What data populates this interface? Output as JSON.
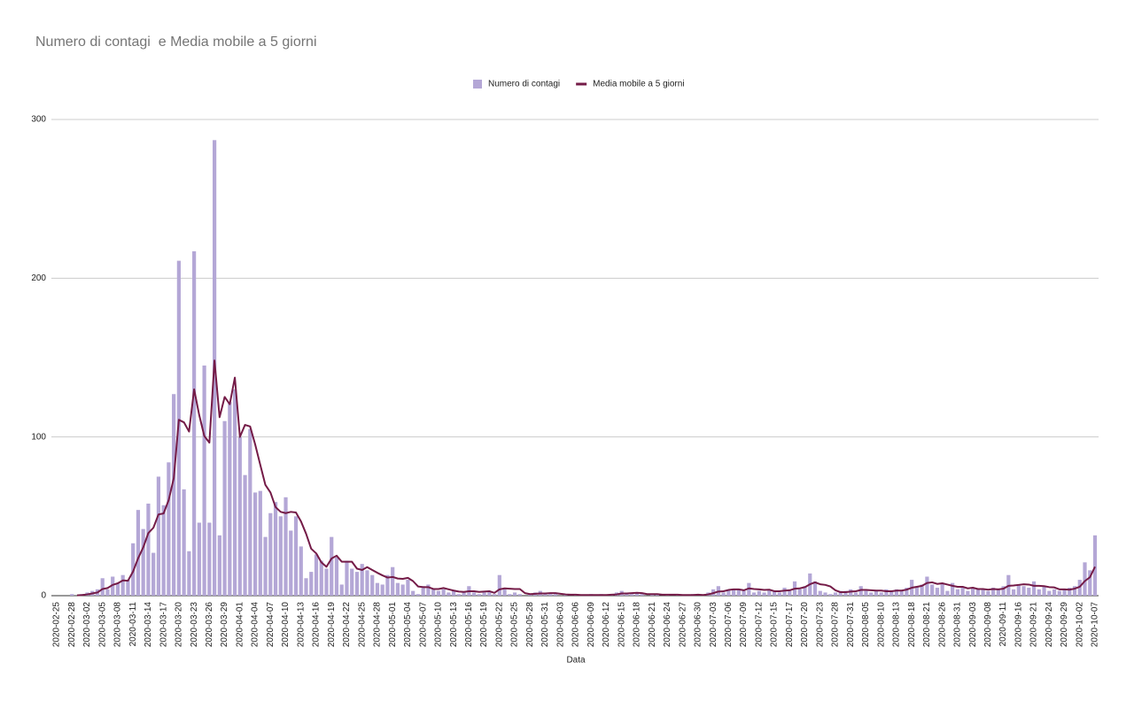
{
  "chart_data": {
    "type": "bar",
    "title": "Numero di contagi  e Media mobile a 5 giorni",
    "x_label": "Data",
    "ylim": [
      0,
      300
    ],
    "yticks": [
      0,
      100,
      200,
      300
    ],
    "grid": true,
    "legend": "top",
    "categories": [
      "2020-02-25",
      null,
      null,
      "2020-02-28",
      null,
      null,
      "2020-03-02",
      null,
      null,
      "2020-03-05",
      null,
      null,
      "2020-03-08",
      null,
      null,
      "2020-03-11",
      null,
      null,
      "2020-03-14",
      null,
      null,
      "2020-03-17",
      null,
      null,
      "2020-03-20",
      null,
      null,
      "2020-03-23",
      null,
      null,
      "2020-03-26",
      null,
      null,
      "2020-03-29",
      null,
      null,
      "2020-04-01",
      null,
      null,
      "2020-04-04",
      null,
      null,
      "2020-04-07",
      null,
      null,
      "2020-04-10",
      null,
      null,
      "2020-04-13",
      null,
      null,
      "2020-04-16",
      null,
      null,
      "2020-04-19",
      null,
      null,
      "2020-04-22",
      null,
      null,
      "2020-04-25",
      null,
      null,
      "2020-04-28",
      null,
      null,
      "2020-05-01",
      null,
      null,
      "2020-05-04",
      null,
      null,
      "2020-05-07",
      null,
      null,
      "2020-05-10",
      null,
      null,
      "2020-05-13",
      null,
      null,
      "2020-05-16",
      null,
      null,
      "2020-05-19",
      null,
      null,
      "2020-05-22",
      null,
      null,
      "2020-05-25",
      null,
      null,
      "2020-05-28",
      null,
      null,
      "2020-05-31",
      null,
      null,
      "2020-06-03",
      null,
      null,
      "2020-06-06",
      null,
      null,
      "2020-06-09",
      null,
      null,
      "2020-06-12",
      null,
      null,
      "2020-06-15",
      null,
      null,
      "2020-06-18",
      null,
      null,
      "2020-06-21",
      null,
      null,
      "2020-06-24",
      null,
      null,
      "2020-06-27",
      null,
      null,
      "2020-06-30",
      null,
      null,
      "2020-07-03",
      null,
      null,
      "2020-07-06",
      null,
      null,
      "2020-07-09",
      null,
      null,
      "2020-07-12",
      null,
      null,
      "2020-07-15",
      null,
      null,
      "2020-07-17",
      null,
      null,
      "2020-07-20",
      null,
      null,
      "2020-07-23",
      null,
      null,
      "2020-07-28",
      null,
      null,
      "2020-07-31",
      null,
      null,
      "2020-08-05",
      null,
      null,
      "2020-08-10",
      null,
      null,
      "2020-08-13",
      null,
      null,
      "2020-08-18",
      null,
      null,
      "2020-08-21",
      null,
      null,
      "2020-08-26",
      null,
      null,
      "2020-08-31",
      null,
      null,
      "2020-09-03",
      null,
      null,
      "2020-09-08",
      null,
      null,
      "2020-09-11",
      null,
      null,
      "2020-09-16",
      null,
      null,
      "2020-09-21",
      null,
      null,
      "2020-09-24",
      null,
      null,
      "2020-09-29",
      null,
      null,
      "2020-10-02",
      null,
      null,
      "2020-10-07"
    ],
    "series": [
      {
        "name": "Numero di contagi",
        "type": "bar",
        "color": "#b4a7d6",
        "values": [
          0,
          0,
          0,
          1,
          0,
          1,
          2,
          3,
          4,
          11,
          4,
          12,
          8,
          13,
          10,
          33,
          54,
          42,
          58,
          27,
          75,
          57,
          84,
          127,
          211,
          67,
          28,
          217,
          46,
          145,
          46,
          287,
          38,
          110,
          122,
          130,
          100,
          76,
          105,
          65,
          66,
          37,
          52,
          59,
          50,
          62,
          41,
          50,
          31,
          11,
          15,
          26,
          22,
          17,
          37,
          24,
          7,
          22,
          17,
          15,
          20,
          16,
          13,
          8,
          7,
          13,
          18,
          8,
          7,
          10,
          3,
          1,
          6,
          7,
          4,
          3,
          4,
          2,
          3,
          1,
          2,
          6,
          2,
          1,
          2,
          3,
          1,
          13,
          4,
          1,
          2,
          1,
          0,
          1,
          2,
          3,
          1,
          1,
          1,
          0,
          1,
          0,
          1,
          0,
          0,
          1,
          0,
          1,
          0,
          1,
          2,
          3,
          1,
          1,
          2,
          1,
          0,
          1,
          1,
          0,
          1,
          0,
          1,
          0,
          0,
          1,
          1,
          0,
          2,
          4,
          6,
          2,
          4,
          4,
          4,
          3,
          8,
          2,
          3,
          2,
          4,
          3,
          2,
          5,
          3,
          9,
          4,
          6,
          14,
          9,
          3,
          2,
          1,
          2,
          3,
          3,
          4,
          2,
          6,
          3,
          2,
          3,
          2,
          4,
          3,
          4,
          3,
          5,
          10,
          6,
          7,
          12,
          7,
          5,
          8,
          3,
          8,
          4,
          5,
          3,
          5,
          4,
          4,
          3,
          5,
          4,
          6,
          13,
          4,
          7,
          6,
          5,
          9,
          4,
          6,
          3,
          4,
          3,
          4,
          5,
          6,
          10,
          21,
          16,
          38
        ]
      },
      {
        "name": "Media mobile a 5 giorni",
        "type": "line",
        "color": "#741b47",
        "values": [
          null,
          null,
          null,
          null,
          0.2,
          0.4,
          0.8,
          1.4,
          2,
          4.2,
          4.8,
          6.8,
          7.8,
          9.6,
          9.4,
          15.2,
          23.6,
          30.4,
          39.4,
          42.8,
          51.2,
          51.8,
          60.2,
          74,
          110.8,
          109.2,
          103.4,
          130,
          113.8,
          100.6,
          96.4,
          148.2,
          112.4,
          125.2,
          120.6,
          137.4,
          100,
          107.6,
          106.6,
          95.2,
          82.4,
          69.8,
          65,
          55.8,
          52.8,
          52,
          52.8,
          52.4,
          46.8,
          39,
          29.6,
          26.6,
          21,
          18.2,
          23.4,
          25.2,
          21.4,
          21.4,
          21.4,
          17,
          16.2,
          18,
          16.2,
          14.4,
          12.8,
          11.4,
          11.8,
          10.8,
          10.6,
          11.2,
          9.2,
          5.8,
          5.4,
          5.4,
          4.2,
          4.2,
          4.8,
          4,
          3.2,
          2.6,
          2.4,
          2.8,
          2.8,
          2.4,
          2.6,
          2.8,
          1.8,
          4,
          4.6,
          4.4,
          4.2,
          4.2,
          1.6,
          1,
          1.2,
          1.4,
          1.4,
          1.6,
          1.6,
          1.2,
          0.8,
          0.6,
          0.6,
          0.4,
          0.4,
          0.4,
          0.4,
          0.4,
          0.4,
          0.6,
          0.8,
          1.4,
          1.4,
          1.6,
          1.8,
          1.6,
          1,
          1,
          1,
          0.6,
          0.6,
          0.6,
          0.6,
          0.4,
          0.4,
          0.4,
          0.6,
          0.4,
          0.8,
          1.6,
          2.6,
          2.8,
          3.6,
          4,
          4,
          3.4,
          4.6,
          4.2,
          4,
          3.6,
          3.8,
          2.8,
          2.8,
          3.2,
          3.4,
          4.4,
          4.6,
          5.4,
          7.2,
          8.4,
          7.2,
          6.8,
          5.8,
          3.4,
          2.2,
          2.2,
          2.6,
          2.8,
          3.6,
          3.6,
          3.4,
          3.2,
          3.2,
          2.8,
          2.8,
          3.2,
          3.2,
          3.8,
          5,
          5.6,
          6.2,
          8,
          8.4,
          7.4,
          7.8,
          7,
          6.2,
          5.6,
          5.6,
          4.6,
          5,
          4.2,
          4.2,
          3.8,
          4.2,
          4,
          4.4,
          6.2,
          6.4,
          6.8,
          7.2,
          7,
          6.2,
          6.2,
          6,
          5.4,
          5.2,
          4,
          4,
          3.8,
          4.4,
          5.6,
          9.2,
          11.6,
          18.2
        ]
      }
    ]
  }
}
